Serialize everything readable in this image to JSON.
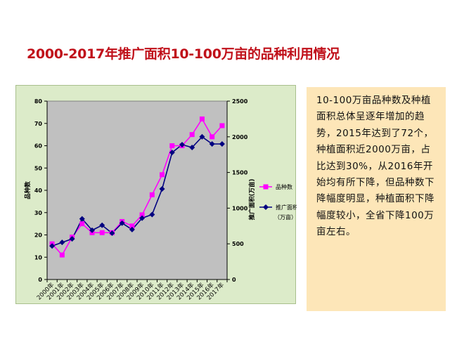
{
  "slide": {
    "title": "2000-2017年推广面积10-100万亩的品种利用情况",
    "note": "10-100万亩品种数及种植面积总体呈逐年增加的趋势，2015年达到了72个，种植面积近2000万亩，占比达到30%，从2016年开始均有所下降，但品种数下降幅度明显，种植面积下降幅度较小，全省下降100万亩左右。"
  },
  "colors": {
    "title": "#c0101a",
    "plot_bg": "#c0c0c0",
    "panel_bg": "#dcebc9",
    "note_bg": "#fde6b8",
    "series_varieties": "#ff00ff",
    "series_area": "#000080"
  },
  "chart_data": {
    "type": "line",
    "categories": [
      "2000年",
      "2001年",
      "2002年",
      "2003年",
      "2004年",
      "2005年",
      "2006年",
      "2007年",
      "2008年",
      "2009年",
      "2010年",
      "2011年",
      "2012年",
      "2013年",
      "2014年",
      "2015年",
      "2016年",
      "2017年"
    ],
    "series": [
      {
        "name": "品种数",
        "axis": "left",
        "marker": "square",
        "values": [
          16,
          11,
          19,
          25,
          21,
          21,
          21,
          26,
          24,
          29,
          38,
          47,
          60,
          60,
          65,
          72,
          64,
          69
        ]
      },
      {
        "name": "推广面积（万亩）",
        "axis": "right",
        "marker": "diamond",
        "values": [
          470,
          520,
          570,
          850,
          690,
          760,
          650,
          790,
          700,
          860,
          910,
          1270,
          1780,
          1890,
          1850,
          2000,
          1900,
          1900
        ]
      }
    ],
    "ylabel": "品种数",
    "y2label": "推广面积(万亩)",
    "ylim": [
      0,
      80
    ],
    "y2lim": [
      0,
      2500
    ],
    "yticks": [
      0,
      10,
      20,
      30,
      40,
      50,
      60,
      70,
      80
    ],
    "y2ticks": [
      0,
      500,
      1000,
      1500,
      2000,
      2500
    ],
    "legend": {
      "position": "right",
      "entries": [
        "品种数",
        "推广面积",
        "（万亩）"
      ]
    }
  }
}
